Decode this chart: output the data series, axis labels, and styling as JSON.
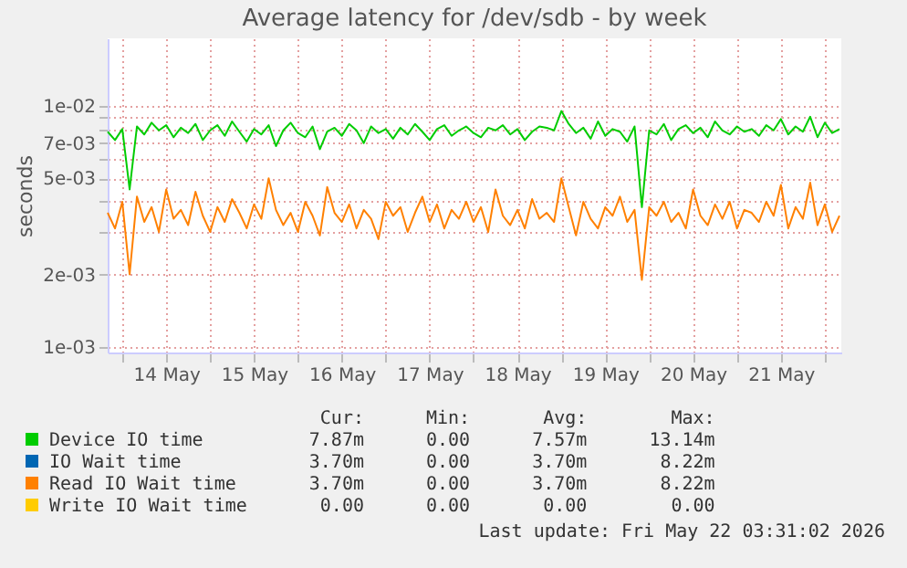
{
  "chart_data": {
    "type": "line",
    "title": "Average latency for /dev/sdb - by week",
    "ylabel": "seconds",
    "log": true,
    "grid": true,
    "legend": "bottom",
    "ylim": [
      0.00095,
      0.019
    ],
    "yticks": [
      {
        "value": 0.001,
        "label": "1e-03"
      },
      {
        "value": 0.002,
        "label": "2e-03"
      },
      {
        "value": 0.003,
        "label": null
      },
      {
        "value": 0.004,
        "label": null
      },
      {
        "value": 0.005,
        "label": "5e-03"
      },
      {
        "value": 0.006,
        "label": null
      },
      {
        "value": 0.007,
        "label": "7e-03"
      },
      {
        "value": 0.008,
        "label": null
      },
      {
        "value": 0.009,
        "label": null
      },
      {
        "value": 0.01,
        "label": "1e-02"
      }
    ],
    "xlim": [
      "2026-05-13T20:00",
      "2026-05-22T04:30"
    ],
    "xticks": [
      {
        "value": "2026-05-14T00:00",
        "label": null
      },
      {
        "value": "2026-05-14T12:00",
        "label": "14 May"
      },
      {
        "value": "2026-05-15T00:00",
        "label": null
      },
      {
        "value": "2026-05-15T12:00",
        "label": "15 May"
      },
      {
        "value": "2026-05-16T00:00",
        "label": null
      },
      {
        "value": "2026-05-16T12:00",
        "label": "16 May"
      },
      {
        "value": "2026-05-17T00:00",
        "label": null
      },
      {
        "value": "2026-05-17T12:00",
        "label": "17 May"
      },
      {
        "value": "2026-05-18T00:00",
        "label": null
      },
      {
        "value": "2026-05-18T12:00",
        "label": "18 May"
      },
      {
        "value": "2026-05-19T00:00",
        "label": null
      },
      {
        "value": "2026-05-19T12:00",
        "label": "19 May"
      },
      {
        "value": "2026-05-20T00:00",
        "label": null
      },
      {
        "value": "2026-05-20T12:00",
        "label": "20 May"
      },
      {
        "value": "2026-05-21T00:00",
        "label": null
      },
      {
        "value": "2026-05-21T12:00",
        "label": "21 May"
      },
      {
        "value": "2026-05-22T00:00",
        "label": null
      }
    ],
    "x": [
      "2026-05-13T20:00",
      "2026-05-13T22:00",
      "2026-05-14T00:00",
      "2026-05-14T02:00",
      "2026-05-14T04:00",
      "2026-05-14T06:00",
      "2026-05-14T08:00",
      "2026-05-14T10:00",
      "2026-05-14T12:00",
      "2026-05-14T14:00",
      "2026-05-14T16:00",
      "2026-05-14T18:00",
      "2026-05-14T20:00",
      "2026-05-14T22:00",
      "2026-05-15T00:00",
      "2026-05-15T02:00",
      "2026-05-15T04:00",
      "2026-05-15T06:00",
      "2026-05-15T08:00",
      "2026-05-15T10:00",
      "2026-05-15T12:00",
      "2026-05-15T14:00",
      "2026-05-15T16:00",
      "2026-05-15T18:00",
      "2026-05-15T20:00",
      "2026-05-15T22:00",
      "2026-05-16T00:00",
      "2026-05-16T02:00",
      "2026-05-16T04:00",
      "2026-05-16T06:00",
      "2026-05-16T08:00",
      "2026-05-16T10:00",
      "2026-05-16T12:00",
      "2026-05-16T14:00",
      "2026-05-16T16:00",
      "2026-05-16T18:00",
      "2026-05-16T20:00",
      "2026-05-16T22:00",
      "2026-05-17T00:00",
      "2026-05-17T02:00",
      "2026-05-17T04:00",
      "2026-05-17T06:00",
      "2026-05-17T08:00",
      "2026-05-17T10:00",
      "2026-05-17T12:00",
      "2026-05-17T14:00",
      "2026-05-17T16:00",
      "2026-05-17T18:00",
      "2026-05-17T20:00",
      "2026-05-17T22:00",
      "2026-05-18T00:00",
      "2026-05-18T02:00",
      "2026-05-18T04:00",
      "2026-05-18T06:00",
      "2026-05-18T08:00",
      "2026-05-18T10:00",
      "2026-05-18T12:00",
      "2026-05-18T14:00",
      "2026-05-18T16:00",
      "2026-05-18T18:00",
      "2026-05-18T20:00",
      "2026-05-18T22:00",
      "2026-05-19T00:00",
      "2026-05-19T02:00",
      "2026-05-19T04:00",
      "2026-05-19T06:00",
      "2026-05-19T08:00",
      "2026-05-19T10:00",
      "2026-05-19T12:00",
      "2026-05-19T14:00",
      "2026-05-19T16:00",
      "2026-05-19T18:00",
      "2026-05-19T20:00",
      "2026-05-19T22:00",
      "2026-05-20T00:00",
      "2026-05-20T02:00",
      "2026-05-20T04:00",
      "2026-05-20T06:00",
      "2026-05-20T08:00",
      "2026-05-20T10:00",
      "2026-05-20T12:00",
      "2026-05-20T14:00",
      "2026-05-20T16:00",
      "2026-05-20T18:00",
      "2026-05-20T20:00",
      "2026-05-20T22:00",
      "2026-05-21T00:00",
      "2026-05-21T02:00",
      "2026-05-21T04:00",
      "2026-05-21T06:00",
      "2026-05-21T08:00",
      "2026-05-21T10:00",
      "2026-05-21T12:00",
      "2026-05-21T14:00",
      "2026-05-21T16:00",
      "2026-05-21T18:00",
      "2026-05-21T20:00",
      "2026-05-21T22:00",
      "2026-05-22T00:00",
      "2026-05-22T02:00",
      "2026-05-22T04:00"
    ],
    "series": [
      {
        "name": "Device IO time",
        "color": "#00cc00",
        "values": [
          0.0078,
          0.0072,
          0.008,
          0.0045,
          0.0082,
          0.0076,
          0.0085,
          0.0079,
          0.0083,
          0.0074,
          0.0081,
          0.0077,
          0.0084,
          0.0072,
          0.0079,
          0.0083,
          0.0075,
          0.0086,
          0.0078,
          0.0071,
          0.008,
          0.0076,
          0.0083,
          0.0068,
          0.0079,
          0.0085,
          0.0077,
          0.0074,
          0.0082,
          0.0066,
          0.0078,
          0.0081,
          0.0075,
          0.0084,
          0.0079,
          0.007,
          0.0082,
          0.0077,
          0.008,
          0.0073,
          0.0081,
          0.0076,
          0.0084,
          0.0078,
          0.0072,
          0.008,
          0.0083,
          0.0075,
          0.0079,
          0.0082,
          0.0077,
          0.0074,
          0.0081,
          0.0079,
          0.0083,
          0.0076,
          0.008,
          0.0072,
          0.0078,
          0.0082,
          0.0081,
          0.0079,
          0.0095,
          0.0084,
          0.0077,
          0.0081,
          0.0073,
          0.0086,
          0.0075,
          0.008,
          0.0078,
          0.0071,
          0.0082,
          0.0038,
          0.0079,
          0.0076,
          0.0084,
          0.0072,
          0.008,
          0.0083,
          0.0077,
          0.0081,
          0.0074,
          0.0086,
          0.0079,
          0.0076,
          0.0082,
          0.0078,
          0.008,
          0.0075,
          0.0083,
          0.0079,
          0.0088,
          0.0076,
          0.0082,
          0.0078,
          0.009,
          0.0074,
          0.0085,
          0.0077,
          0.008
        ]
      },
      {
        "name": "IO Wait time",
        "color": "#0066b3",
        "values": [
          null,
          null,
          null,
          null,
          null,
          null,
          null,
          null,
          null,
          null,
          null,
          null,
          null,
          null,
          null,
          null,
          null,
          null,
          null,
          null,
          null,
          null,
          null,
          null,
          null,
          null,
          null,
          null,
          null,
          null,
          null,
          null,
          null,
          null,
          null,
          null,
          null,
          null,
          null,
          null,
          null,
          null,
          null,
          null,
          null,
          null,
          null,
          null,
          null,
          null,
          null,
          null,
          null,
          null,
          null,
          null,
          null,
          null,
          null,
          null,
          null,
          null,
          null,
          null,
          null,
          null,
          null,
          null,
          null,
          null,
          null,
          null,
          null,
          null,
          null,
          null,
          null,
          null,
          null,
          null,
          null,
          null,
          null,
          null,
          null,
          null,
          null,
          null,
          null,
          null,
          null,
          null,
          null,
          null,
          null,
          null,
          null,
          null,
          null,
          null,
          null
        ]
      },
      {
        "name": "Read IO Wait time",
        "color": "#ff8000",
        "values": [
          0.0036,
          0.0031,
          0.004,
          0.002,
          0.0042,
          0.0033,
          0.0038,
          0.003,
          0.0045,
          0.0034,
          0.0037,
          0.0032,
          0.0044,
          0.0035,
          0.003,
          0.0038,
          0.0033,
          0.0041,
          0.0036,
          0.0031,
          0.0039,
          0.0034,
          0.005,
          0.0037,
          0.0032,
          0.0036,
          0.003,
          0.004,
          0.0035,
          0.0029,
          0.0046,
          0.0036,
          0.0033,
          0.0039,
          0.0031,
          0.0037,
          0.0034,
          0.0028,
          0.004,
          0.0035,
          0.0038,
          0.003,
          0.0036,
          0.0042,
          0.0033,
          0.0039,
          0.0031,
          0.0037,
          0.0034,
          0.004,
          0.0033,
          0.0038,
          0.003,
          0.0045,
          0.0035,
          0.0032,
          0.0037,
          0.0031,
          0.0041,
          0.0034,
          0.0036,
          0.0033,
          0.005,
          0.0038,
          0.0029,
          0.004,
          0.0034,
          0.0031,
          0.0038,
          0.0035,
          0.0042,
          0.0033,
          0.0037,
          0.0019,
          0.0038,
          0.0035,
          0.004,
          0.0033,
          0.0036,
          0.0031,
          0.0045,
          0.0035,
          0.0032,
          0.0039,
          0.0034,
          0.004,
          0.0031,
          0.0037,
          0.0036,
          0.0033,
          0.004,
          0.0035,
          0.0047,
          0.0031,
          0.0038,
          0.0034,
          0.0048,
          0.0032,
          0.0039,
          0.003,
          0.0035
        ]
      },
      {
        "name": "Write IO Wait time",
        "color": "#ffcc00",
        "values": [
          null,
          null,
          null,
          null,
          null,
          null,
          null,
          null,
          null,
          null,
          null,
          null,
          null,
          null,
          null,
          null,
          null,
          null,
          null,
          null,
          null,
          null,
          null,
          null,
          null,
          null,
          null,
          null,
          null,
          null,
          null,
          null,
          null,
          null,
          null,
          null,
          null,
          null,
          null,
          null,
          null,
          null,
          null,
          null,
          null,
          null,
          null,
          null,
          null,
          null,
          null,
          null,
          null,
          null,
          null,
          null,
          null,
          null,
          null,
          null,
          null,
          null,
          null,
          null,
          null,
          null,
          null,
          null,
          null,
          null,
          null,
          null,
          null,
          null,
          null,
          null,
          null,
          null,
          null,
          null,
          null,
          null,
          null,
          null,
          null,
          null,
          null,
          null,
          null,
          null,
          null,
          null,
          null,
          null,
          null,
          null,
          null,
          null,
          null,
          null,
          null
        ]
      }
    ],
    "annotations": [
      "Cur:",
      "Min:",
      "Avg:",
      "Max:",
      "7.87m",
      "0.00",
      "7.57m",
      "13.14m",
      "3.70m",
      "0.00",
      "3.70m",
      "8.22m",
      "3.70m",
      "0.00",
      "3.70m",
      "8.22m",
      "0.00",
      "0.00",
      "0.00",
      "0.00",
      "Last update: Fri May 22 03:31:02 2026"
    ]
  }
}
